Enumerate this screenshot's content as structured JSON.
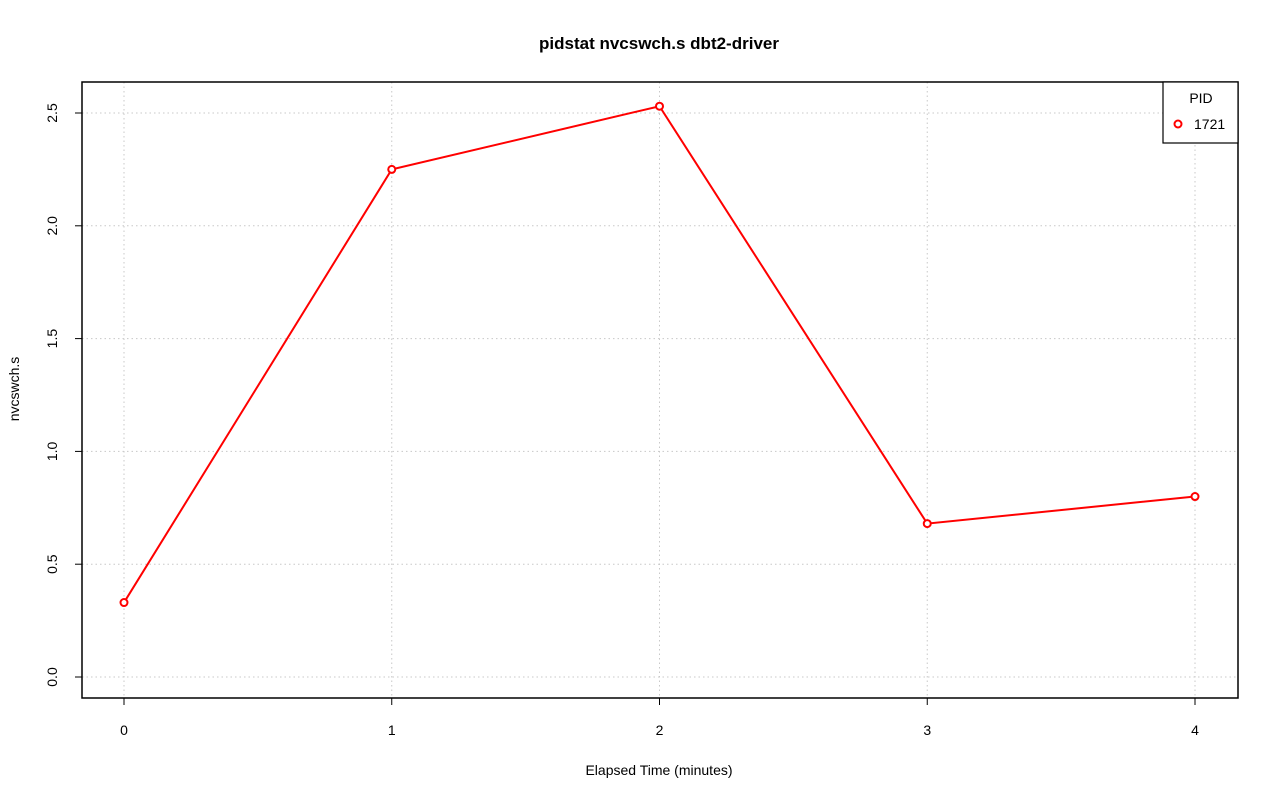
{
  "chart_data": {
    "type": "line",
    "title": "pidstat nvcswch.s dbt2-driver",
    "xlabel": "Elapsed Time (minutes)",
    "ylabel": "nvcswch.s",
    "x": [
      0,
      1,
      2,
      3,
      4
    ],
    "series": [
      {
        "name": "1721",
        "values": [
          0.33,
          2.25,
          2.53,
          0.68,
          0.8
        ]
      }
    ],
    "xlim": [
      0,
      4
    ],
    "ylim": [
      0,
      2.5
    ],
    "xticks": [
      "0",
      "1",
      "2",
      "3",
      "4"
    ],
    "yticks": [
      "0.0",
      "0.5",
      "1.0",
      "1.5",
      "2.0",
      "2.5"
    ],
    "grid": true,
    "legend": {
      "title": "PID",
      "position": "top-right"
    },
    "colors": {
      "series": "#ff0000",
      "grid": "#c8c8c8",
      "axis": "#000000"
    }
  }
}
